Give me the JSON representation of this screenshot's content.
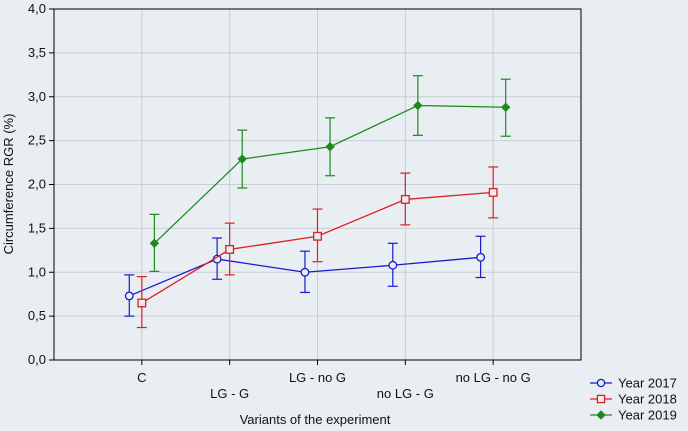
{
  "chart_data": {
    "type": "line",
    "title": "",
    "xlabel": "Variants of the experiment",
    "ylabel": "Circumference RGR (%)",
    "ylim": [
      0,
      4
    ],
    "yticks": [
      "0,0",
      "0,5",
      "1,0",
      "1,5",
      "2,0",
      "2,5",
      "3,0",
      "3,5",
      "4,0"
    ],
    "categories": [
      "C",
      "LG - G",
      "LG - no G",
      "no LG - G",
      "no LG - no G"
    ],
    "grid": true,
    "legend_position": "bottom-right",
    "series": [
      {
        "name": "Year 2017",
        "color": "#1a1acc",
        "marker": "circle",
        "values": [
          0.73,
          1.15,
          1.0,
          1.08,
          1.17
        ],
        "lower": [
          0.5,
          0.92,
          0.77,
          0.84,
          0.94
        ],
        "upper": [
          0.97,
          1.39,
          1.24,
          1.33,
          1.41
        ]
      },
      {
        "name": "Year 2018",
        "color": "#dd2020",
        "marker": "square",
        "values": [
          0.65,
          1.26,
          1.41,
          1.83,
          1.91
        ],
        "lower": [
          0.37,
          0.97,
          1.12,
          1.54,
          1.62
        ],
        "upper": [
          0.95,
          1.56,
          1.72,
          2.13,
          2.2
        ]
      },
      {
        "name": "Year 2019",
        "color": "#1e8a1e",
        "marker": "diamond",
        "values": [
          1.33,
          2.29,
          2.43,
          2.9,
          2.88
        ],
        "lower": [
          1.01,
          1.96,
          2.1,
          2.56,
          2.55
        ],
        "upper": [
          1.66,
          2.62,
          2.76,
          3.24,
          3.2
        ]
      }
    ]
  }
}
